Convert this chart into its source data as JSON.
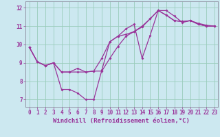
{
  "xlabel": "Windchill (Refroidissement éolien,°C)",
  "bg_color": "#cce8f0",
  "line_color": "#993399",
  "grid_color": "#99ccbb",
  "spine_color": "#888899",
  "xlim": [
    -0.5,
    23.4
  ],
  "ylim": [
    6.6,
    12.35
  ],
  "xticks": [
    0,
    1,
    2,
    3,
    4,
    5,
    6,
    7,
    8,
    9,
    10,
    11,
    12,
    13,
    14,
    15,
    16,
    17,
    18,
    19,
    20,
    21,
    22,
    23
  ],
  "yticks": [
    7,
    8,
    9,
    10,
    11,
    12
  ],
  "curve1_x": [
    0,
    1,
    2,
    3,
    4,
    5,
    6,
    7,
    8,
    9,
    10,
    11,
    12,
    13,
    14,
    15,
    16,
    17,
    18,
    19,
    20,
    21,
    22,
    23
  ],
  "curve1_y": [
    9.85,
    9.05,
    8.85,
    9.0,
    7.55,
    7.55,
    7.35,
    7.0,
    7.0,
    8.6,
    10.15,
    10.45,
    10.85,
    11.1,
    9.25,
    10.5,
    11.85,
    11.85,
    11.55,
    11.2,
    11.3,
    11.15,
    11.05,
    11.0
  ],
  "curve2_x": [
    0,
    1,
    2,
    3,
    4,
    5,
    6,
    7,
    8,
    9,
    10,
    11,
    12,
    13,
    14,
    15,
    16,
    17,
    18,
    19,
    20,
    21,
    22,
    23
  ],
  "curve2_y": [
    9.85,
    9.05,
    8.85,
    9.0,
    8.5,
    8.5,
    8.7,
    8.5,
    8.55,
    9.25,
    10.15,
    10.45,
    10.55,
    10.7,
    11.0,
    11.4,
    11.85,
    11.6,
    11.3,
    11.25,
    11.3,
    11.1,
    11.0,
    11.0
  ],
  "curve3_x": [
    0,
    1,
    2,
    3,
    4,
    5,
    6,
    7,
    8,
    9,
    10,
    11,
    12,
    13,
    14,
    15,
    16,
    17,
    18,
    19,
    20,
    21,
    22,
    23
  ],
  "curve3_y": [
    9.85,
    9.05,
    8.85,
    9.0,
    8.5,
    8.5,
    8.5,
    8.5,
    8.55,
    8.55,
    9.25,
    9.9,
    10.45,
    10.7,
    10.95,
    11.4,
    11.85,
    11.6,
    11.3,
    11.25,
    11.3,
    11.1,
    11.0,
    11.0
  ],
  "marker_size": 2.0,
  "linewidth": 0.9,
  "xlabel_fontsize": 6.5,
  "tick_fontsize": 5.5
}
